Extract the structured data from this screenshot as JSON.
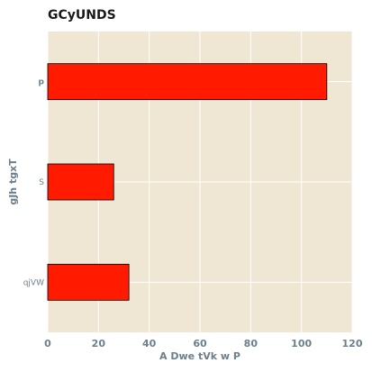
{
  "chart_data": {
    "type": "bar",
    "orientation": "horizontal",
    "title": "GCyUNDS",
    "xlabel": "A  Dwe tVk w P",
    "ylabel": "gJh tgxT",
    "categories": [
      "p",
      "S",
      "qjVW"
    ],
    "values": [
      110,
      26,
      32
    ],
    "xlim": [
      0,
      120
    ],
    "xticks": [
      0,
      20,
      40,
      60,
      80,
      100,
      120
    ],
    "grid": true,
    "legend": "none",
    "colors": {
      "bar": "#ff1a00",
      "bar_edge": "#000000",
      "plot_background": "#efe7d4",
      "grid": "#ffffff",
      "axis_text": "#6b7f8c"
    }
  }
}
